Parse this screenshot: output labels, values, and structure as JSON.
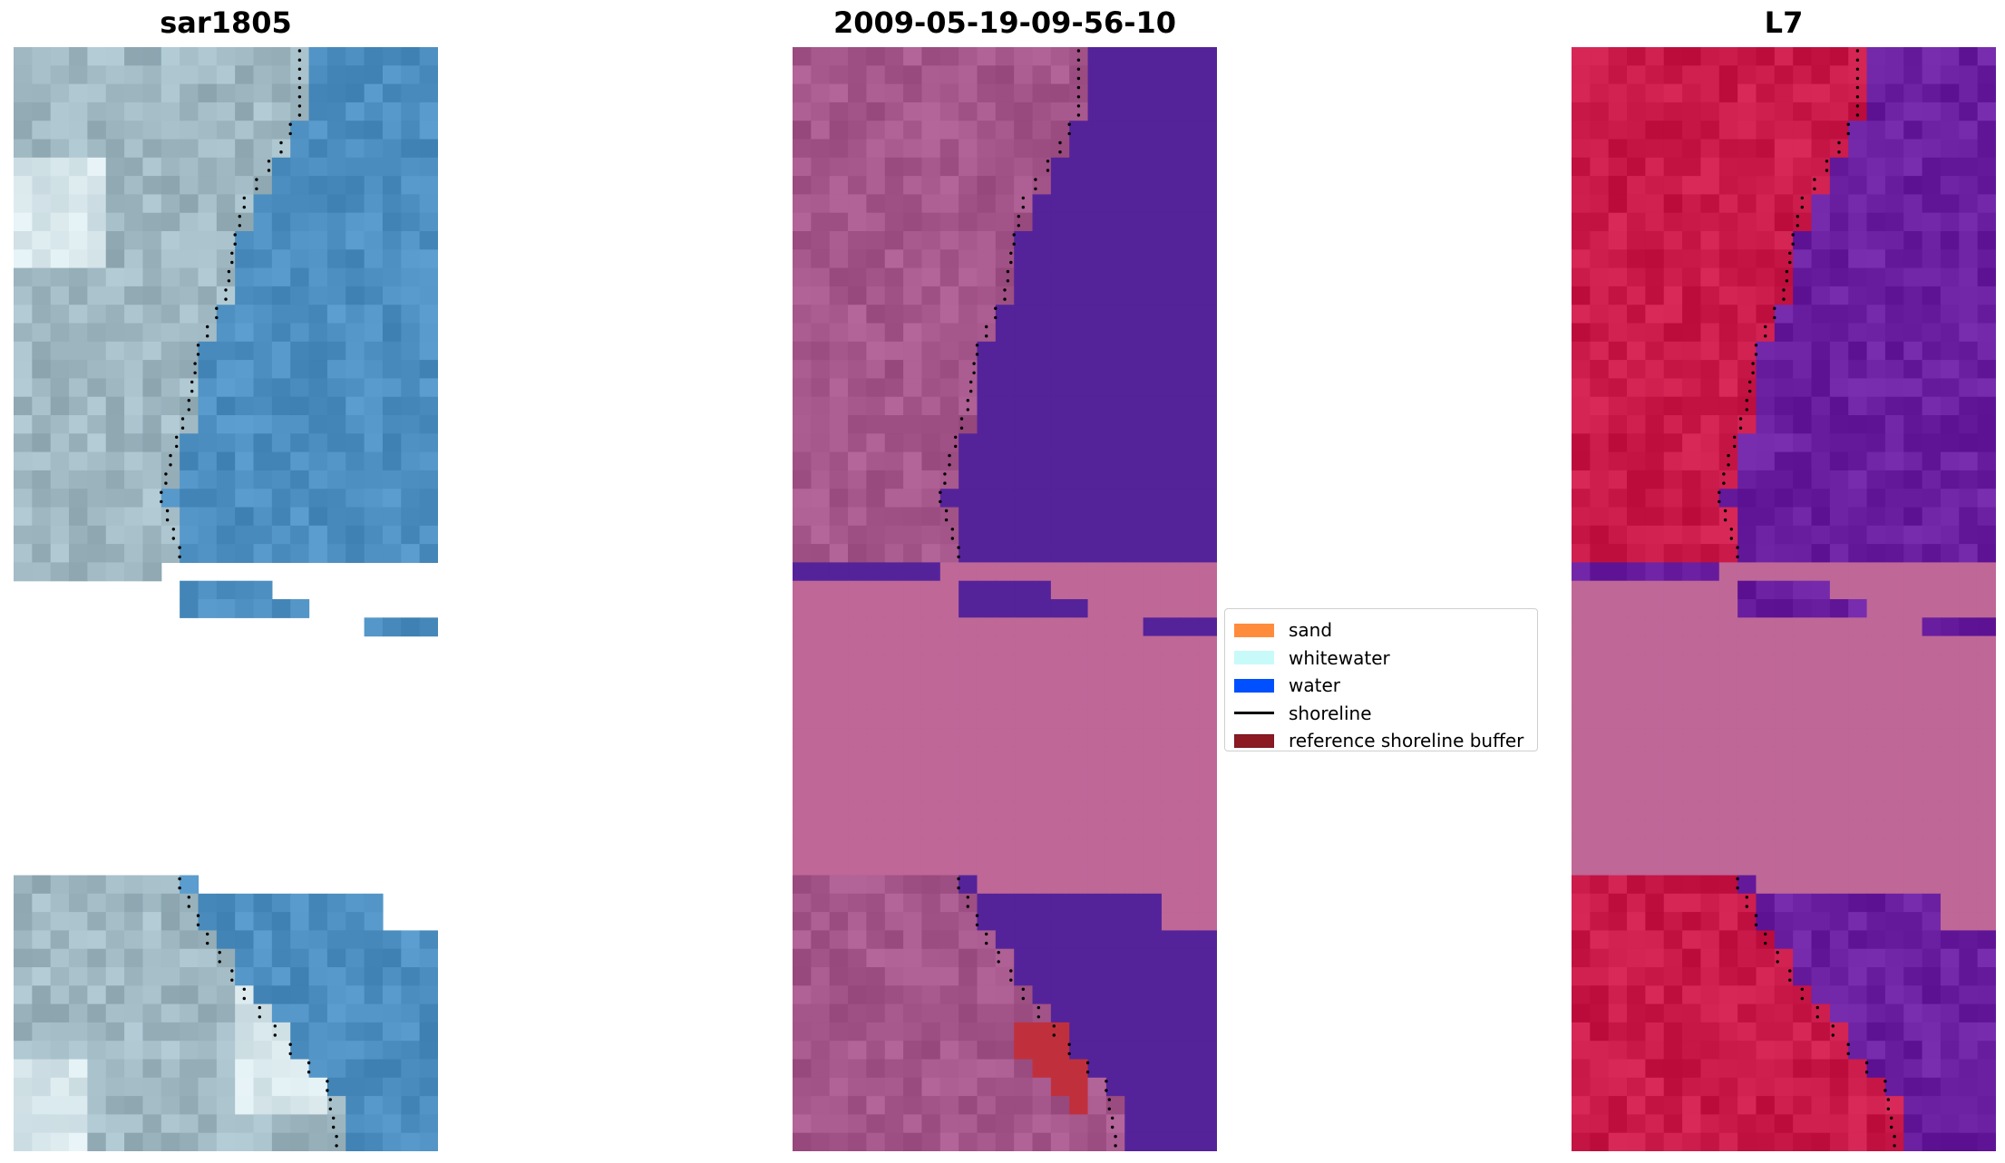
{
  "titles": {
    "rgb": "sar1805",
    "classified": "2009-05-19-09-56-10",
    "index": "L7"
  },
  "legend": {
    "items": [
      {
        "label": "sand",
        "color": "#ff8c3c",
        "kind": "patch"
      },
      {
        "label": "whitewater",
        "color": "#c8fafa",
        "kind": "patch"
      },
      {
        "label": "water",
        "color": "#0050ff",
        "kind": "patch"
      },
      {
        "label": "shoreline",
        "color": "#000000",
        "kind": "line"
      },
      {
        "label": "reference shoreline buffer",
        "color": "#8b1a22",
        "kind": "patch"
      }
    ]
  },
  "colors": {
    "shoreline": "#000000",
    "rgb_water": "#4d8fc0",
    "rgb_land": "#9fb8c2",
    "classified_water": "#552399",
    "classified_land": "#a5568a",
    "classified_gap": "#bf6797",
    "buffer": "#c0303c",
    "index_land": "#c91a4a",
    "index_water": "#6a1fa0",
    "index_gap": "#bf6797"
  }
}
